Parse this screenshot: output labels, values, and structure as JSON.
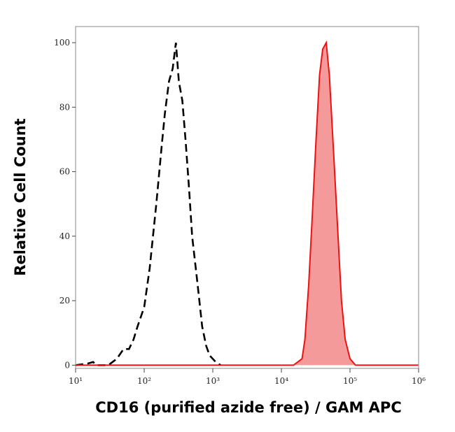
{
  "chart_data": {
    "type": "histogram-overlay",
    "x_label": "CD16 (purified azide free) / GAM APC",
    "y_label": "Relative Cell Count",
    "xscale": "log",
    "xlim": [
      10,
      1000000
    ],
    "xticks": [
      {
        "value": 10,
        "label": "10¹"
      },
      {
        "value": 100,
        "label": "10²"
      },
      {
        "value": 1000,
        "label": "10³"
      },
      {
        "value": 10000,
        "label": "10⁴"
      },
      {
        "value": 100000,
        "label": "10⁵"
      },
      {
        "value": 1000000,
        "label": "10⁶"
      }
    ],
    "ylim": [
      -1,
      105
    ],
    "yticks": [
      0,
      20,
      40,
      60,
      80,
      100
    ],
    "series": [
      {
        "color": "#000000",
        "dashed": true,
        "filled": false,
        "x": [
          10,
          15,
          18,
          20,
          30,
          40,
          50,
          60,
          70,
          80,
          100,
          120,
          150,
          180,
          200,
          230,
          260,
          290,
          320,
          360,
          400,
          450,
          500,
          600,
          700,
          800,
          900,
          1100,
          1300
        ],
        "values": [
          0,
          0.5,
          1,
          0,
          0,
          2,
          5,
          5,
          8,
          12,
          18,
          30,
          50,
          68,
          78,
          88,
          92,
          100,
          88,
          82,
          70,
          55,
          40,
          25,
          12,
          6,
          3,
          1,
          0
        ]
      },
      {
        "color": "#ee1111",
        "dashed": false,
        "filled": true,
        "fill": "#f59a9a",
        "x": [
          10,
          15000,
          20000,
          22000,
          25000,
          28000,
          32000,
          36000,
          40000,
          45000,
          50000,
          58000,
          65000,
          75000,
          85000,
          100000,
          120000,
          1000000
        ],
        "values": [
          0,
          0,
          2,
          8,
          25,
          45,
          70,
          90,
          98,
          100,
          90,
          65,
          45,
          20,
          8,
          2,
          0,
          0
        ]
      }
    ]
  }
}
